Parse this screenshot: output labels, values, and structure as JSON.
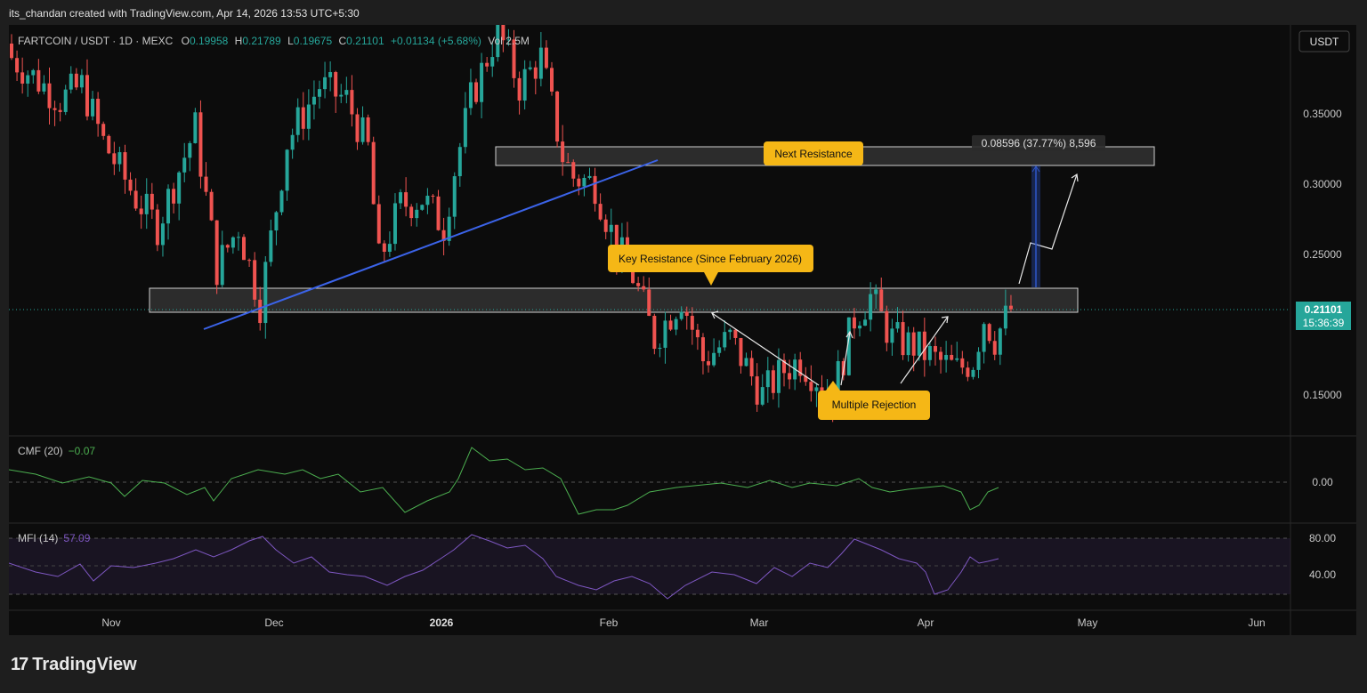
{
  "header": {
    "credit": "its_chandan created with TradingView.com, Apr 14, 2026 13:53 UTC+5:30"
  },
  "footer": {
    "brand": "TradingView",
    "mark": "17"
  },
  "colors": {
    "up": "#26a69a",
    "down": "#ef5350",
    "trendline": "#3b63e8",
    "cmf": "#4caf50",
    "mfi": "#7e57c2",
    "callout": "#f5b716"
  },
  "symbol": {
    "pair": "FARTCOIN / USDT · 1D · MEXC",
    "o_label": "O",
    "o": "0.19958",
    "h_label": "H",
    "h": "0.21789",
    "l_label": "L",
    "l": "0.19675",
    "c_label": "C",
    "c": "0.21101",
    "change": "+0.01134 (+5.68%)",
    "vol": "Vol 2.5M"
  },
  "currency_button": "USDT",
  "price_axis": {
    "ticks": [
      "0.35000",
      "0.30000",
      "0.25000",
      "0.15000"
    ]
  },
  "current_price": {
    "value": "0.21101",
    "countdown": "15:36:39"
  },
  "time_axis": {
    "labels": [
      "Nov",
      "Dec",
      "2026",
      "Feb",
      "Mar",
      "Apr",
      "May",
      "Jun"
    ]
  },
  "annotations": {
    "next_resistance": "Next Resistance",
    "key_resistance": "Key Resistance (Since February 2026)",
    "multiple_rejection": "Multiple Rejection",
    "measure": "0.08596 (37.77%) 8,596"
  },
  "cmf": {
    "label": "CMF (20)",
    "value": "−0.07",
    "zero_tick": "0.00"
  },
  "mfi": {
    "label": "MFI (14)",
    "value": "57.09",
    "ticks": [
      "80.00",
      "40.00"
    ]
  },
  "chart_data": {
    "type": "candlestick",
    "title": "FARTCOIN / USDT · 1D · MEXC",
    "x_range": [
      "2025-10-11",
      "2026-06-09"
    ],
    "y_range": [
      0.12,
      0.41
    ],
    "key_zone": [
      0.215,
      0.232
    ],
    "next_zone": [
      0.313,
      0.327
    ],
    "last_close": 0.21101,
    "anchors": [
      [
        "2025-10-11",
        0.39
      ],
      [
        "2025-10-20",
        0.36
      ],
      [
        "2025-10-24",
        0.37
      ],
      [
        "2025-10-28",
        0.33
      ],
      [
        "2025-11-03",
        0.29
      ],
      [
        "2025-11-07",
        0.27
      ],
      [
        "2025-11-11",
        0.31
      ],
      [
        "2025-11-14",
        0.34
      ],
      [
        "2025-11-18",
        0.24
      ],
      [
        "2025-11-22",
        0.27
      ],
      [
        "2025-11-26",
        0.215
      ],
      [
        "2025-12-01",
        0.33
      ],
      [
        "2025-12-07",
        0.37
      ],
      [
        "2025-12-12",
        0.36
      ],
      [
        "2025-12-16",
        0.325
      ],
      [
        "2025-12-18",
        0.245
      ],
      [
        "2025-12-22",
        0.285
      ],
      [
        "2025-12-26",
        0.29
      ],
      [
        "2025-12-30",
        0.27
      ],
      [
        "2026-01-01",
        0.31
      ],
      [
        "2026-01-04",
        0.36
      ],
      [
        "2026-01-09",
        0.41
      ],
      [
        "2026-01-13",
        0.37
      ],
      [
        "2026-01-17",
        0.39
      ],
      [
        "2026-01-21",
        0.32
      ],
      [
        "2026-01-23",
        0.305
      ],
      [
        "2026-01-27",
        0.3
      ],
      [
        "2026-01-31",
        0.255
      ],
      [
        "2026-02-03",
        0.235
      ],
      [
        "2026-02-07",
        0.19
      ],
      [
        "2026-02-12",
        0.22
      ],
      [
        "2026-02-16",
        0.175
      ],
      [
        "2026-02-21",
        0.19
      ],
      [
        "2026-02-27",
        0.15
      ],
      [
        "2026-03-03",
        0.168
      ],
      [
        "2026-03-06",
        0.175
      ],
      [
        "2026-03-12",
        0.15
      ],
      [
        "2026-03-16",
        0.205
      ],
      [
        "2026-03-19",
        0.22
      ],
      [
        "2026-03-23",
        0.19
      ],
      [
        "2026-03-27",
        0.185
      ],
      [
        "2026-03-31",
        0.175
      ],
      [
        "2026-04-04",
        0.168
      ],
      [
        "2026-04-07",
        0.175
      ],
      [
        "2026-04-09",
        0.205
      ],
      [
        "2026-04-11",
        0.19
      ],
      [
        "2026-04-14",
        0.211
      ]
    ]
  }
}
